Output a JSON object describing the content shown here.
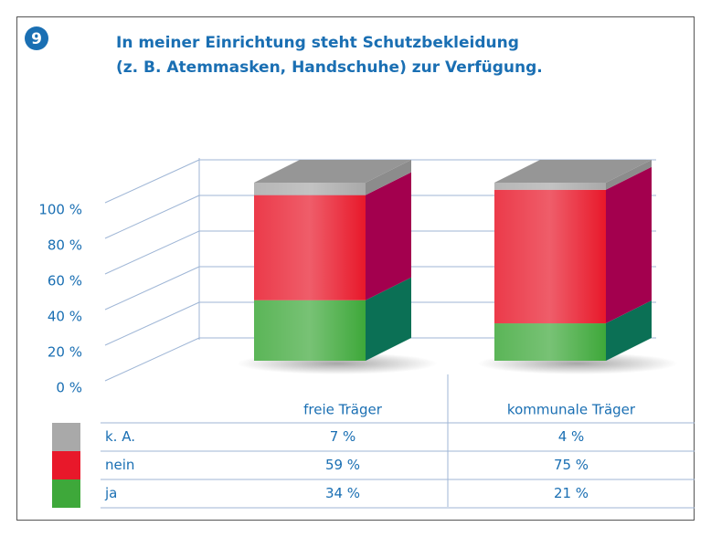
{
  "chart_data": {
    "type": "bar",
    "stacked": true,
    "badge": "9",
    "title": [
      "In meiner Einrichtung steht Schutzbekleidung",
      "(z. B. Atemmasken, Handschuhe) zur Verfügung."
    ],
    "categories": [
      "freie Träger",
      "kommunale Träger"
    ],
    "series": [
      {
        "name": "ja",
        "color": "#3ea83a",
        "side_color": "#0b7055",
        "values": [
          34,
          21
        ],
        "value_labels": [
          "34 %",
          "21 %"
        ]
      },
      {
        "name": "nein",
        "color": "#e8182a",
        "side_color": "#a3004e",
        "values": [
          59,
          75
        ],
        "value_labels": [
          "59 %",
          "75 %"
        ]
      },
      {
        "name": "k. A.",
        "color": "#a9a9a9",
        "side_color": "#8c8c8c",
        "values": [
          7,
          4
        ],
        "value_labels": [
          "7 %",
          "4 %"
        ]
      }
    ],
    "ylim": [
      0,
      100
    ],
    "yticks": [
      {
        "value": 0,
        "label": "0 %"
      },
      {
        "value": 20,
        "label": "20 %"
      },
      {
        "value": 40,
        "label": "40 %"
      },
      {
        "value": 60,
        "label": "60 %"
      },
      {
        "value": 80,
        "label": "80 %"
      },
      {
        "value": 100,
        "label": "100 %"
      }
    ],
    "grid": true
  }
}
